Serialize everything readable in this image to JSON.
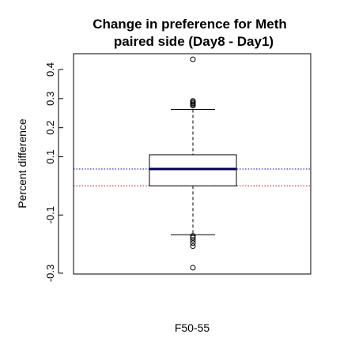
{
  "chart_data": {
    "type": "box",
    "title_line1": "Change in preference for Meth",
    "title_line2": "paired side (Day8 - Day1)",
    "xlabel": "F50-55",
    "ylabel": "Percent difference",
    "ylim": [
      -0.3,
      0.45
    ],
    "yticks": [
      -0.3,
      -0.1,
      0.1,
      0.2,
      0.3,
      0.4
    ],
    "ytick_labels": [
      "-0.3",
      "-0.1",
      "0.1",
      "0.2",
      "0.3",
      "0.4"
    ],
    "category": "F50-55",
    "box": {
      "whisker_low": -0.168,
      "q1": 0.0,
      "median": 0.058,
      "q3": 0.107,
      "whisker_high": 0.263
    },
    "outliers": [
      0.435,
      0.292,
      0.288,
      0.284,
      0.28,
      0.276,
      -0.172,
      -0.178,
      -0.186,
      -0.196,
      -0.207,
      -0.281
    ],
    "ref_lines": [
      {
        "name": "blue-dotted-line",
        "value": 0.058,
        "color": "#0000cc"
      },
      {
        "name": "red-dotted-line",
        "value": 0.0,
        "color": "#cc0000"
      }
    ],
    "colors": {
      "median": "#000066",
      "axis": "#000000",
      "box": "#000000"
    },
    "grid": false
  }
}
